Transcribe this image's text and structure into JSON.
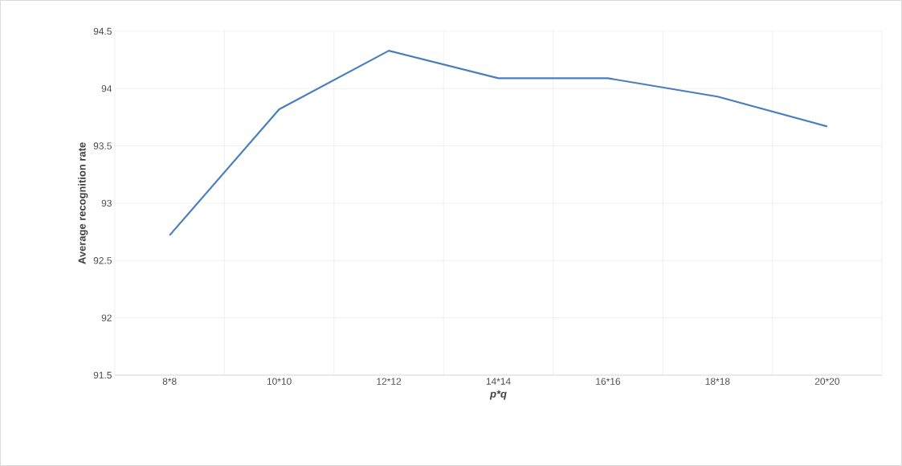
{
  "chart_data": {
    "type": "line",
    "xlabel": "p*q",
    "ylabel": "Average recognition rate",
    "categories": [
      "8*8",
      "10*10",
      "12*12",
      "14*14",
      "16*16",
      "18*18",
      "20*20"
    ],
    "series": [
      {
        "color": "#4a7ebb",
        "values": [
          92.72,
          93.82,
          94.33,
          94.09,
          94.09,
          93.93,
          93.67
        ]
      }
    ],
    "ylim": [
      91.5,
      94.5
    ],
    "yticks": [
      91.5,
      92,
      92.5,
      93,
      93.5,
      94,
      94.5
    ],
    "grid": true,
    "marker": "none",
    "line_style": "solid"
  }
}
